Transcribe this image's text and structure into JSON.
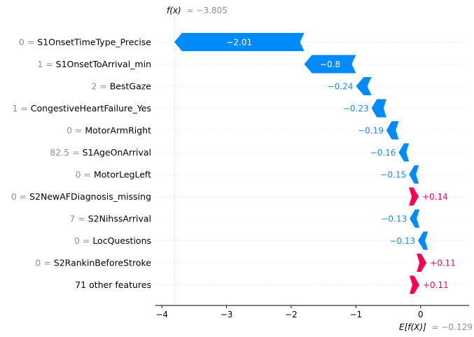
{
  "chart_data": {
    "type": "waterfall",
    "fx_label": "f(x)",
    "fx_value_text": "= −3.805",
    "fx": -3.805,
    "base_label": "E[f(X)]",
    "base_value_text": "= −0.129",
    "base_value": -0.129,
    "xlim": [
      -4.1,
      0.75
    ],
    "xticks": [
      -4,
      -3,
      -2,
      -1,
      0
    ],
    "xtick_labels": [
      "−4",
      "−3",
      "−2",
      "−1",
      "0"
    ],
    "colors": {
      "negative": "#008bfb",
      "positive": "#ff0051",
      "negative_text": "#1E88E5",
      "positive_text": "#ff0051"
    },
    "features": [
      {
        "value": "0",
        "name": "S1OnsetTimeType_Precise",
        "shap": -2.01,
        "label": "−2.01"
      },
      {
        "value": "1",
        "name": "S1OnsetToArrival_min",
        "shap": -0.8,
        "label": "−0.8"
      },
      {
        "value": "2",
        "name": "BestGaze",
        "shap": -0.24,
        "label": "−0.24"
      },
      {
        "value": "1",
        "name": "CongestiveHeartFailure_Yes",
        "shap": -0.23,
        "label": "−0.23"
      },
      {
        "value": "0",
        "name": "MotorArmRight",
        "shap": -0.19,
        "label": "−0.19"
      },
      {
        "value": "82.5",
        "name": "S1AgeOnArrival",
        "shap": -0.16,
        "label": "−0.16"
      },
      {
        "value": "0",
        "name": "MotorLegLeft",
        "shap": -0.15,
        "label": "−0.15"
      },
      {
        "value": "0",
        "name": "S2NewAFDiagnosis_missing",
        "shap": 0.14,
        "label": "+0.14"
      },
      {
        "value": "7",
        "name": "S2NihssArrival",
        "shap": -0.13,
        "label": "−0.13"
      },
      {
        "value": "0",
        "name": "LocQuestions",
        "shap": -0.13,
        "label": "−0.13"
      },
      {
        "value": "0",
        "name": "S2RankinBeforeStroke",
        "shap": 0.11,
        "label": "+0.11"
      },
      {
        "value": "",
        "name": "71 other features",
        "shap": 0.11,
        "label": "+0.11"
      }
    ]
  }
}
